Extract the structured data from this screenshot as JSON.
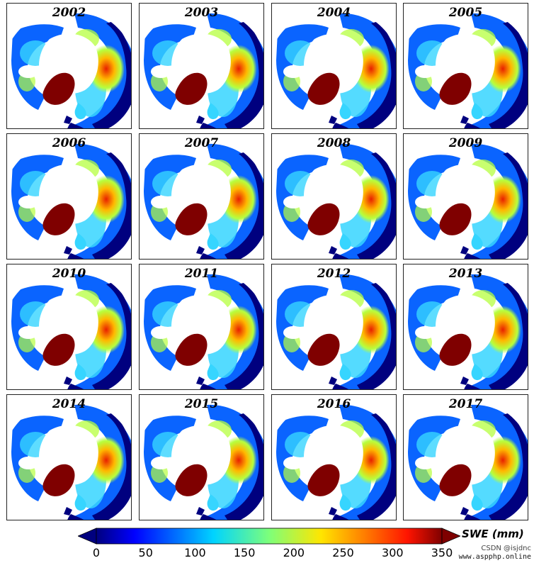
{
  "panels": [
    {
      "year": "2002"
    },
    {
      "year": "2003"
    },
    {
      "year": "2004"
    },
    {
      "year": "2005"
    },
    {
      "year": "2006"
    },
    {
      "year": "2007"
    },
    {
      "year": "2008"
    },
    {
      "year": "2009"
    },
    {
      "year": "2010"
    },
    {
      "year": "2011"
    },
    {
      "year": "2012"
    },
    {
      "year": "2013"
    },
    {
      "year": "2014"
    },
    {
      "year": "2015"
    },
    {
      "year": "2016"
    },
    {
      "year": "2017"
    }
  ],
  "colorbar": {
    "title": "SWE (mm)",
    "min": 0,
    "max": 350,
    "ticks": [
      "0",
      "50",
      "100",
      "150",
      "200",
      "250",
      "300",
      "350"
    ],
    "extend": "both",
    "colormap": "jet"
  },
  "colors": {
    "low": "#00007f",
    "mid_low": "#0a64ff",
    "mid": "#36d5ff",
    "mid_high": "#b6ff3f",
    "high": "#ffb800",
    "peak": "#e82000",
    "greenland": "#7f0000"
  },
  "watermark": {
    "line1": "CSDN @isjdnc",
    "line2": "www.aspphp.online"
  }
}
